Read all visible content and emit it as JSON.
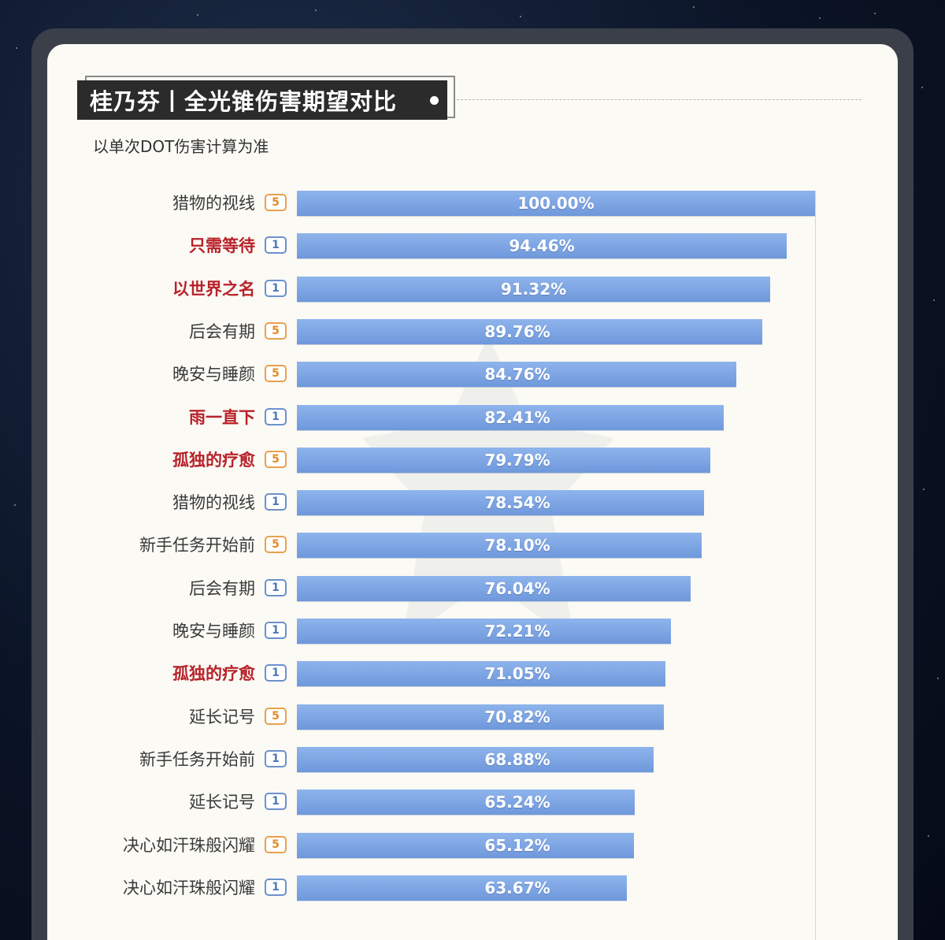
{
  "header": {
    "title": "桂乃芬丨全光锥伤害期望对比",
    "subtitle": "以单次DOT伤害计算为准"
  },
  "colors": {
    "bar": "#7aa3e3",
    "highlight_label": "#b8222a",
    "rank5_badge": "#e58a24",
    "rank1_badge": "#4d78b8"
  },
  "chart_data": {
    "type": "bar",
    "orientation": "horizontal",
    "categories": [
      "猎物的视线",
      "只需等待",
      "以世界之名",
      "后会有期",
      "晚安与睡颜",
      "雨一直下",
      "孤独的疗愈",
      "猎物的视线",
      "新手任务开始前",
      "后会有期",
      "晚安与睡颜",
      "孤独的疗愈",
      "延长记号",
      "新手任务开始前",
      "延长记号",
      "决心如汗珠般闪耀",
      "决心如汗珠般闪耀"
    ],
    "ranks": [
      "5",
      "1",
      "1",
      "5",
      "5",
      "1",
      "5",
      "1",
      "5",
      "1",
      "1",
      "1",
      "5",
      "1",
      "1",
      "5",
      "1"
    ],
    "highlighted": [
      false,
      true,
      true,
      false,
      false,
      true,
      true,
      false,
      false,
      false,
      false,
      true,
      false,
      false,
      false,
      false,
      false
    ],
    "values": [
      100.0,
      94.46,
      91.32,
      89.76,
      84.76,
      82.41,
      79.79,
      78.54,
      78.1,
      76.04,
      72.21,
      71.05,
      70.82,
      68.88,
      65.24,
      65.12,
      63.67
    ],
    "value_labels": [
      "100.00%",
      "94.46%",
      "91.32%",
      "89.76%",
      "84.76%",
      "82.41%",
      "79.79%",
      "78.54%",
      "78.10%",
      "76.04%",
      "72.21%",
      "71.05%",
      "70.82%",
      "68.88%",
      "65.24%",
      "65.12%",
      "63.67%"
    ],
    "title": "桂乃芬丨全光锥伤害期望对比",
    "subtitle": "以单次DOT伤害计算为准",
    "xlim": [
      0,
      100
    ],
    "grid": false,
    "legend": "none"
  }
}
